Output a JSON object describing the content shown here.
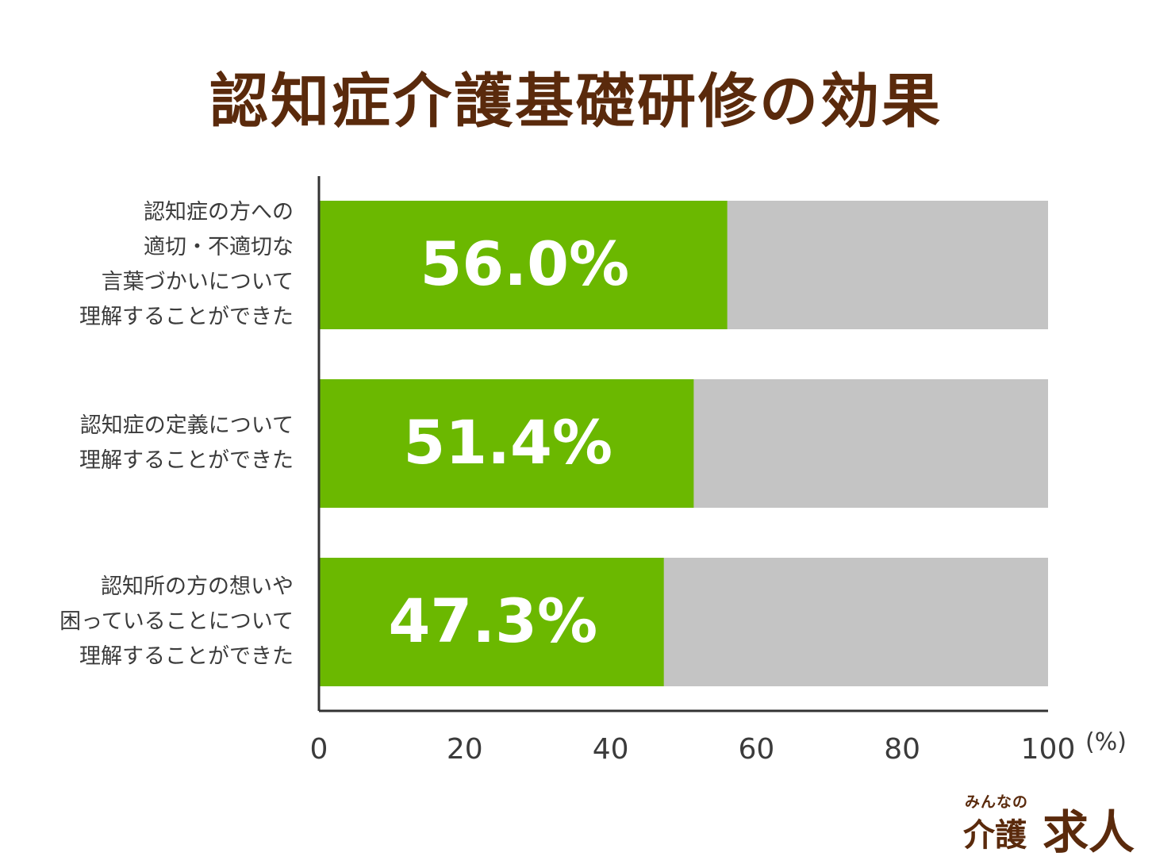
{
  "chart_data": {
    "type": "bar",
    "orientation": "horizontal",
    "stacked_background": true,
    "title": "認知症介護基礎研修の効果",
    "categories": [
      "認知症の方への\n適切・不適切な\n言葉づかいについて\n理解することができた",
      "認知症の定義について\n理解することができた",
      "認知所の方の想いや\n困っていることについて\n理解することができた"
    ],
    "values": [
      56.0,
      51.4,
      47.3
    ],
    "value_labels": [
      "56.0%",
      "51.4%",
      "47.3%"
    ],
    "xlim": [
      0,
      100
    ],
    "xticks": [
      "0",
      "20",
      "40",
      "60",
      "80",
      "100"
    ],
    "xunit": "(%)",
    "colors": {
      "bar": "#6bb800",
      "remainder": "#c4c4c4",
      "axis": "#333333",
      "title": "#5a2a0c"
    }
  },
  "logo": {
    "small": "みんなの",
    "big1": "介護",
    "big2": "求人"
  }
}
